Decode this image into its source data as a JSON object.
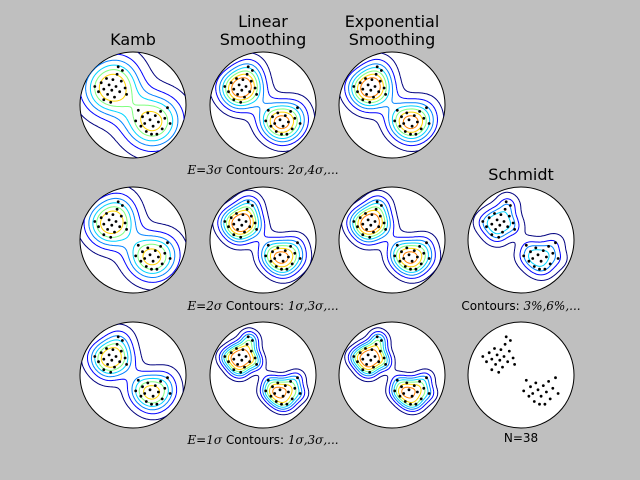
{
  "columns": [
    {
      "title_lines": [
        "Kamb"
      ]
    },
    {
      "title_lines": [
        "Linear",
        "Smoothing"
      ]
    },
    {
      "title_lines": [
        "Exponential",
        "Smoothing"
      ]
    },
    {
      "title_lines": [
        "Schmidt"
      ]
    }
  ],
  "captions": {
    "row1": {
      "math": "E=3σ",
      "text": " Contours: ",
      "math2": "2σ,4σ,..."
    },
    "row2": {
      "math": "E=2σ",
      "text": " Contours: ",
      "math2": "1σ,3σ,..."
    },
    "row3": {
      "math": "E=1σ",
      "text": " Contours: ",
      "math2": "1σ,3σ,..."
    },
    "schmidt": {
      "text": "Contours: ",
      "math2": "3%,6%,..."
    },
    "count": "N=38"
  },
  "chart_data": {
    "type": "stereonet-density-grid",
    "n_points": 38,
    "rows": 3,
    "columns": 4,
    "methods": [
      "Kamb",
      "Linear Smoothing",
      "Exponential Smoothing",
      "Schmidt"
    ],
    "row_parameters": [
      {
        "E": "3σ",
        "contours": "2σ,4σ,..."
      },
      {
        "E": "2σ",
        "contours": "1σ,3σ,..."
      },
      {
        "E": "1σ",
        "contours": "1σ,3σ,..."
      }
    ],
    "schmidt_contours": "3%,6%,...",
    "contour_colors": [
      "#00007f",
      "#0000ff",
      "#0080ff",
      "#00d4ff",
      "#7fff7f",
      "#ffd400",
      "#ff8000"
    ],
    "points": [
      [
        -0.72,
        -0.35
      ],
      [
        -0.65,
        -0.25
      ],
      [
        -0.6,
        -0.42
      ],
      [
        -0.55,
        -0.3
      ],
      [
        -0.5,
        -0.5
      ],
      [
        -0.48,
        -0.2
      ],
      [
        -0.45,
        -0.38
      ],
      [
        -0.4,
        -0.28
      ],
      [
        -0.38,
        -0.48
      ],
      [
        -0.35,
        -0.15
      ],
      [
        -0.32,
        -0.35
      ],
      [
        -0.3,
        -0.58
      ],
      [
        -0.25,
        -0.25
      ],
      [
        -0.22,
        -0.45
      ],
      [
        -0.2,
        -0.65
      ],
      [
        -0.15,
        -0.32
      ],
      [
        -0.12,
        -0.2
      ],
      [
        -0.42,
        -0.05
      ],
      [
        -0.55,
        -0.1
      ],
      [
        -0.28,
        -0.72
      ],
      [
        0.1,
        0.1
      ],
      [
        0.18,
        0.22
      ],
      [
        0.22,
        0.35
      ],
      [
        0.28,
        0.15
      ],
      [
        0.32,
        0.28
      ],
      [
        0.38,
        0.4
      ],
      [
        0.42,
        0.2
      ],
      [
        0.48,
        0.32
      ],
      [
        0.52,
        0.12
      ],
      [
        0.55,
        0.45
      ],
      [
        0.6,
        0.25
      ],
      [
        0.35,
        0.55
      ],
      [
        0.25,
        0.5
      ],
      [
        0.65,
        0.05
      ],
      [
        0.15,
        0.4
      ],
      [
        0.45,
        0.55
      ],
      [
        0.05,
        0.3
      ],
      [
        0.7,
        0.35
      ]
    ]
  }
}
